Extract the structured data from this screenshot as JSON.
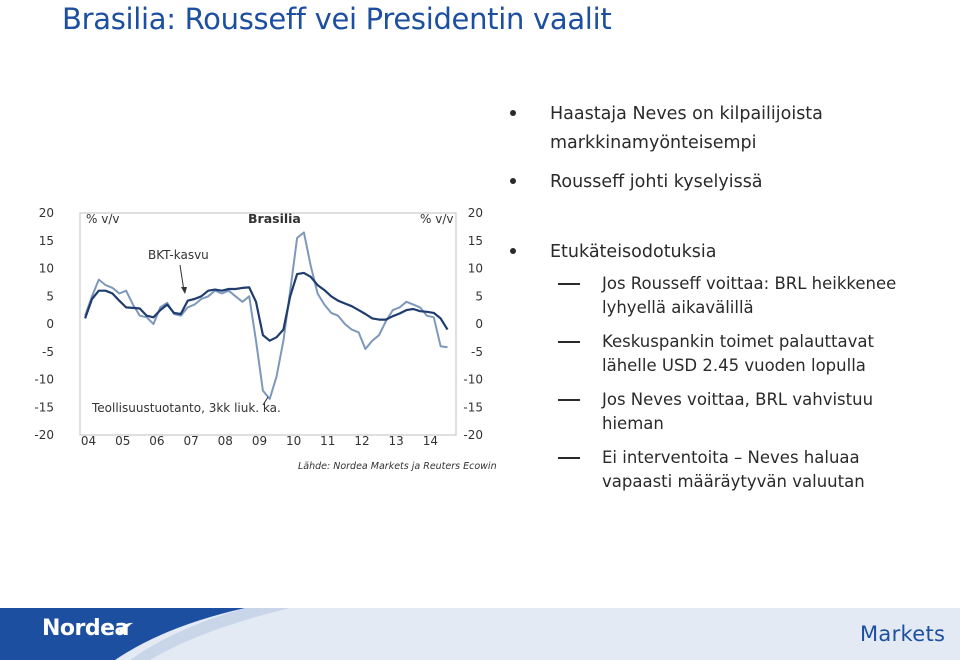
{
  "slide": {
    "title": "Brasilia: Rousseff vei Presidentin vaalit"
  },
  "bullets": [
    {
      "text": "Haastaja Neves on kilpailijoista markkinamyönteisempi",
      "subs": []
    },
    {
      "text": "Rousseff johti kyselyissä",
      "subs": []
    },
    {
      "text": "Etukäteisodotuksia",
      "subs": [
        "Jos Rousseff voittaa: BRL heikkenee lyhyellä aikavälillä",
        "Keskuspankin toimet palauttavat lähelle USD 2.45 vuoden lopulla",
        "Jos Neves voittaa, BRL vahvistuu hieman",
        "Ei interventoita – Neves haluaa vapaasti määräytyvän valuutan"
      ]
    }
  ],
  "chart_data": {
    "type": "line",
    "title": "Brasilia",
    "ylabel_left": "% v/v",
    "ylabel_right": "% v/v",
    "ylim": [
      -20,
      20
    ],
    "y_ticks": [
      "20",
      "15",
      "10",
      "5",
      "0",
      "-5",
      "-10",
      "-15",
      "-20"
    ],
    "x_ticks": [
      "04",
      "05",
      "06",
      "07",
      "08",
      "09",
      "10",
      "11",
      "12",
      "13",
      "14"
    ],
    "source": "Lähde: Nordea Markets ja Reuters Ecowin",
    "annotations": [
      "BKT-kasvu",
      "Teollisuustuotanto, 3kk liuk. ka."
    ],
    "series": [
      {
        "name": "BKT-kasvu",
        "color": "#1f3c6e",
        "x": [
          2003.9,
          2004.1,
          2004.3,
          2004.5,
          2004.7,
          2004.9,
          2005.1,
          2005.3,
          2005.5,
          2005.7,
          2005.9,
          2006.1,
          2006.3,
          2006.5,
          2006.7,
          2006.9,
          2007.1,
          2007.3,
          2007.5,
          2007.7,
          2007.9,
          2008.1,
          2008.3,
          2008.5,
          2008.7,
          2008.9,
          2009.1,
          2009.3,
          2009.5,
          2009.7,
          2009.9,
          2010.1,
          2010.3,
          2010.5,
          2010.7,
          2010.9,
          2011.1,
          2011.3,
          2011.5,
          2011.7,
          2011.9,
          2012.1,
          2012.3,
          2012.5,
          2012.7,
          2012.9,
          2013.1,
          2013.3,
          2013.5,
          2013.7,
          2013.9,
          2014.1,
          2014.3,
          2014.5
        ],
        "values": [
          1.0,
          4.5,
          6.0,
          6.0,
          5.5,
          4.2,
          3.0,
          2.9,
          2.8,
          1.5,
          1.2,
          2.5,
          3.5,
          2.0,
          1.8,
          4.2,
          4.5,
          5.0,
          6.0,
          6.2,
          6.0,
          6.3,
          6.3,
          6.5,
          6.6,
          4.0,
          -2.0,
          -3.0,
          -2.4,
          -1.0,
          5.0,
          9.0,
          9.2,
          8.5,
          7.0,
          6.1,
          5.0,
          4.2,
          3.7,
          3.2,
          2.5,
          1.8,
          1.0,
          0.8,
          0.8,
          1.4,
          1.9,
          2.5,
          2.7,
          2.3,
          2.2,
          2.0,
          1.0,
          -1.0
        ]
      },
      {
        "name": "Teollisuustuotanto, 3kk liuk. ka.",
        "color": "#7d98bb",
        "x": [
          2003.9,
          2004.1,
          2004.3,
          2004.5,
          2004.7,
          2004.9,
          2005.1,
          2005.3,
          2005.5,
          2005.7,
          2005.9,
          2006.1,
          2006.3,
          2006.5,
          2006.7,
          2006.9,
          2007.1,
          2007.3,
          2007.5,
          2007.7,
          2007.9,
          2008.1,
          2008.3,
          2008.5,
          2008.7,
          2008.9,
          2009.1,
          2009.3,
          2009.5,
          2009.7,
          2009.9,
          2010.1,
          2010.3,
          2010.5,
          2010.7,
          2010.9,
          2011.1,
          2011.3,
          2011.5,
          2011.7,
          2011.9,
          2012.1,
          2012.3,
          2012.5,
          2012.7,
          2012.9,
          2013.1,
          2013.3,
          2013.5,
          2013.7,
          2013.9,
          2014.1,
          2014.3,
          2014.5
        ],
        "values": [
          1.5,
          5.0,
          8.0,
          7.0,
          6.5,
          5.5,
          6.0,
          3.5,
          1.5,
          1.2,
          0.0,
          3.0,
          3.8,
          1.8,
          1.5,
          3.0,
          3.5,
          4.5,
          5.0,
          6.0,
          5.5,
          6.0,
          5.0,
          4.0,
          5.0,
          -3.0,
          -12.0,
          -13.5,
          -9.5,
          -3.0,
          6.0,
          15.5,
          16.5,
          10.5,
          5.5,
          3.5,
          2.0,
          1.5,
          0.0,
          -1.0,
          -1.5,
          -4.5,
          -3.0,
          -2.0,
          0.5,
          2.5,
          3.0,
          4.0,
          3.5,
          3.0,
          1.5,
          1.2,
          -4.0,
          -4.2
        ]
      }
    ]
  },
  "footer": {
    "left_logo_text": "Nordea",
    "right_logo_text": "Markets"
  }
}
